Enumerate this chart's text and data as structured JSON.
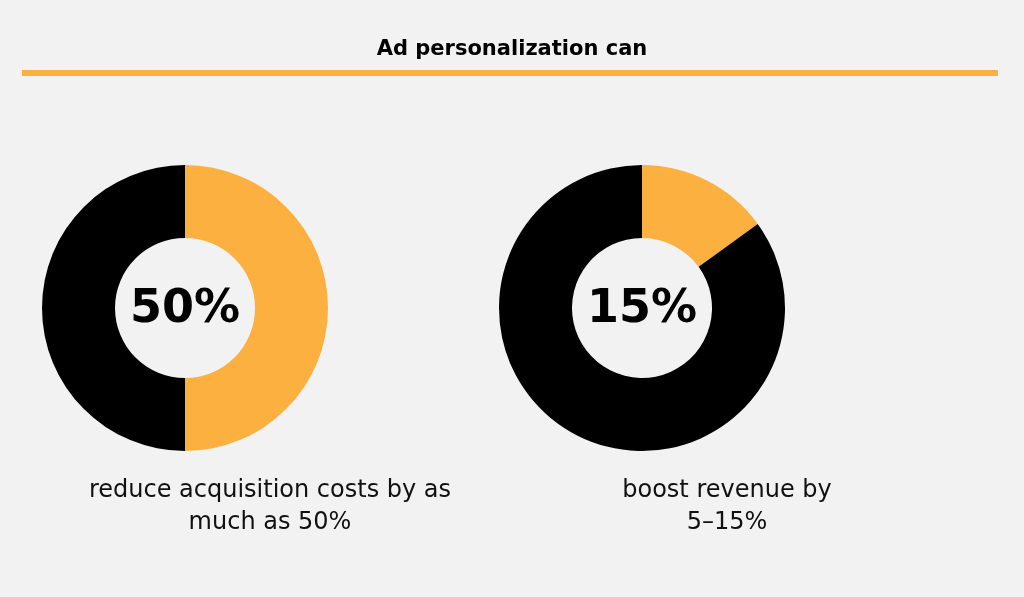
{
  "chart_data": [
    {
      "type": "donut",
      "categories": [
        null,
        null
      ],
      "values": [
        50,
        50
      ],
      "colors": [
        "#fbb040",
        "#000000"
      ],
      "value_labels": [
        "50%",
        null
      ],
      "annotations": [
        "reduce acquisition costs by as much as 50%"
      ]
    },
    {
      "type": "donut",
      "title": "Ad personalization can",
      "categories": [
        null,
        null
      ],
      "values": [
        15,
        85
      ],
      "colors": [
        "#fbb040",
        "#000000"
      ],
      "value_labels": [
        "15%",
        null
      ],
      "annotations": [
        "boost revenue by 5–15%"
      ]
    }
  ]
}
